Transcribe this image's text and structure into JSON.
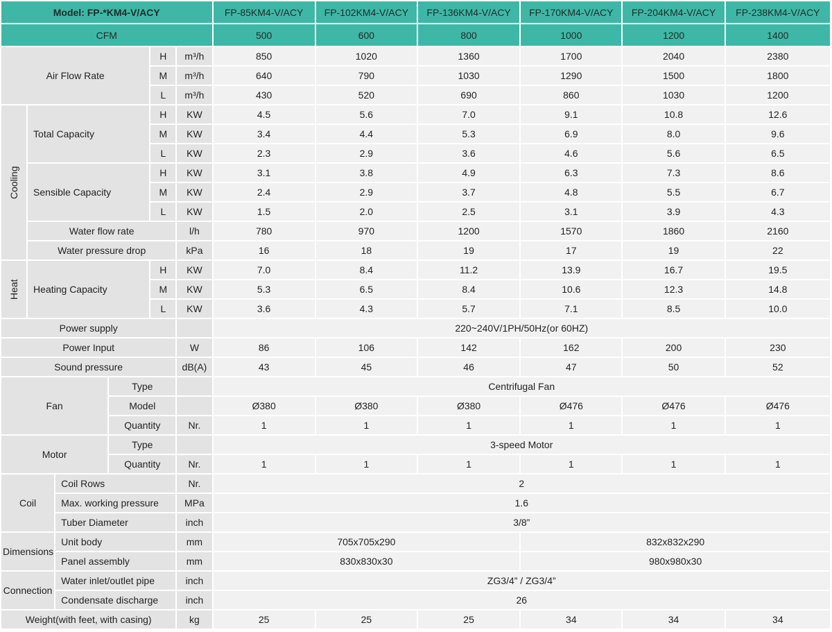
{
  "header": {
    "model_label": "Model: FP-*KM4-V/ACY",
    "cfm_label": "CFM",
    "models": [
      "FP-85KM4-V/ACY",
      "FP-102KM4-V/ACY",
      "FP-136KM4-V/ACY",
      "FP-170KM4-V/ACY",
      "FP-204KM4-V/ACY",
      "FP-238KM4-V/ACY"
    ],
    "cfm": [
      "500",
      "600",
      "800",
      "1000",
      "1200",
      "1400"
    ]
  },
  "air_flow": {
    "label": "Air Flow Rate",
    "rows": [
      {
        "level": "H",
        "unit": "m³/h",
        "values": [
          "850",
          "1020",
          "1360",
          "1700",
          "2040",
          "2380"
        ]
      },
      {
        "level": "M",
        "unit": "m³/h",
        "values": [
          "640",
          "790",
          "1030",
          "1290",
          "1500",
          "1800"
        ]
      },
      {
        "level": "L",
        "unit": "m³/h",
        "values": [
          "430",
          "520",
          "690",
          "860",
          "1030",
          "1200"
        ]
      }
    ]
  },
  "cooling": {
    "label": "Cooling",
    "total_capacity": {
      "label": "Total Capacity",
      "rows": [
        {
          "level": "H",
          "unit": "KW",
          "values": [
            "4.5",
            "5.6",
            "7.0",
            "9.1",
            "10.8",
            "12.6"
          ]
        },
        {
          "level": "M",
          "unit": "KW",
          "values": [
            "3.4",
            "4.4",
            "5.3",
            "6.9",
            "8.0",
            "9.6"
          ]
        },
        {
          "level": "L",
          "unit": "KW",
          "values": [
            "2.3",
            "2.9",
            "3.6",
            "4.6",
            "5.6",
            "6.5"
          ]
        }
      ]
    },
    "sensible_capacity": {
      "label": "Sensible Capacity",
      "rows": [
        {
          "level": "H",
          "unit": "KW",
          "values": [
            "3.1",
            "3.8",
            "4.9",
            "6.3",
            "7.3",
            "8.6"
          ]
        },
        {
          "level": "M",
          "unit": "KW",
          "values": [
            "2.4",
            "2.9",
            "3.7",
            "4.8",
            "5.5",
            "6.7"
          ]
        },
        {
          "level": "L",
          "unit": "KW",
          "values": [
            "1.5",
            "2.0",
            "2.5",
            "3.1",
            "3.9",
            "4.3"
          ]
        }
      ]
    },
    "water_flow_rate": {
      "label": "Water flow rate",
      "unit": "l/h",
      "values": [
        "780",
        "970",
        "1200",
        "1570",
        "1860",
        "2160"
      ]
    },
    "water_pressure_drop": {
      "label": "Water pressure drop",
      "unit": "kPa",
      "values": [
        "16",
        "18",
        "19",
        "17",
        "19",
        "22"
      ]
    }
  },
  "heat": {
    "label": "Heat",
    "heating_capacity": {
      "label": "Heating Capacity",
      "rows": [
        {
          "level": "H",
          "unit": "KW",
          "values": [
            "7.0",
            "8.4",
            "11.2",
            "13.9",
            "16.7",
            "19.5"
          ]
        },
        {
          "level": "M",
          "unit": "KW",
          "values": [
            "5.3",
            "6.5",
            "8.4",
            "10.6",
            "12.3",
            "14.8"
          ]
        },
        {
          "level": "L",
          "unit": "KW",
          "values": [
            "3.6",
            "4.3",
            "5.7",
            "7.1",
            "8.5",
            "10.0"
          ]
        }
      ]
    }
  },
  "power_supply": {
    "label": "Power supply",
    "value": "220~240V/1PH/50Hz(or 60HZ)"
  },
  "power_input": {
    "label": "Power Input",
    "unit": "W",
    "values": [
      "86",
      "106",
      "142",
      "162",
      "200",
      "230"
    ]
  },
  "sound_pressure": {
    "label": "Sound pressure",
    "unit": "dB(A)",
    "values": [
      "43",
      "45",
      "46",
      "47",
      "50",
      "52"
    ]
  },
  "fan": {
    "label": "Fan",
    "type": {
      "label": "Type",
      "value": "Centrifugal Fan"
    },
    "model": {
      "label": "Model",
      "values": [
        "Ø380",
        "Ø380",
        "Ø380",
        "Ø476",
        "Ø476",
        "Ø476"
      ]
    },
    "quantity": {
      "label": "Quantity",
      "unit": "Nr.",
      "values": [
        "1",
        "1",
        "1",
        "1",
        "1",
        "1"
      ]
    }
  },
  "motor": {
    "label": "Motor",
    "type": {
      "label": "Type",
      "value": "3-speed Motor"
    },
    "quantity": {
      "label": "Quantity",
      "unit": "Nr.",
      "values": [
        "1",
        "1",
        "1",
        "1",
        "1",
        "1"
      ]
    }
  },
  "coil": {
    "label": "Coil",
    "coil_rows": {
      "label": "Coil Rows",
      "unit": "Nr.",
      "value": "2"
    },
    "max_working_pressure": {
      "label": "Max. working pressure",
      "unit": "MPa",
      "value": "1.6"
    },
    "tube_diameter": {
      "label": "Tuber Diameter",
      "unit": "inch",
      "value": "3/8”"
    }
  },
  "dimensions": {
    "label": "Dimensions",
    "unit_body": {
      "label": "Unit body",
      "unit": "mm",
      "values": [
        "705x705x290",
        "832x832x290"
      ]
    },
    "panel_assembly": {
      "label": "Panel assembly",
      "unit": "mm",
      "values": [
        "830x830x30",
        "980x980x30"
      ]
    }
  },
  "connection": {
    "label": "Connection",
    "water_pipe": {
      "label": "Water inlet/outlet pipe",
      "unit": "inch",
      "value": "ZG3/4” / ZG3/4”"
    },
    "condensate_discharge": {
      "label": "Condensate discharge",
      "unit": "inch",
      "value": "26"
    }
  },
  "weight": {
    "label": "Weight(with feet, with casing)",
    "unit": "kg",
    "values": [
      "25",
      "25",
      "25",
      "34",
      "34",
      "34"
    ]
  }
}
